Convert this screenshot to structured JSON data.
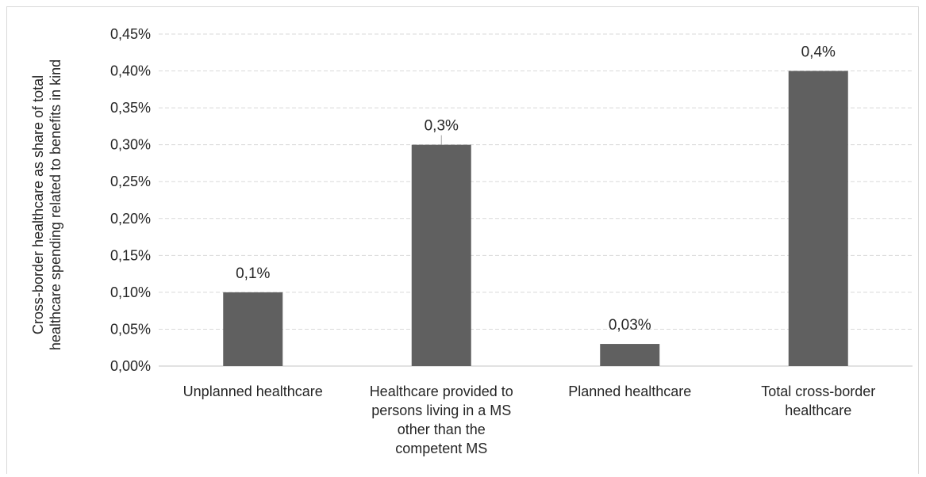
{
  "chart_data": {
    "type": "bar",
    "categories": [
      "Unplanned healthcare",
      "Healthcare provided to persons living in a MS other than the competent MS",
      "Planned healthcare",
      "Total cross-border healthcare"
    ],
    "category_lines": [
      [
        "Unplanned healthcare"
      ],
      [
        "Healthcare provided to",
        "persons living in a MS",
        "other than the",
        "competent MS"
      ],
      [
        "Planned healthcare"
      ],
      [
        "Total cross-border",
        "healthcare"
      ]
    ],
    "values": [
      0.1,
      0.3,
      0.03,
      0.4
    ],
    "data_labels": [
      "0,1%",
      "0,3%",
      "0,03%",
      "0,4%"
    ],
    "ylabel_lines": [
      "Cross-border healthcare as share of total",
      "healthcare spending related to benefits in kind"
    ],
    "ylim": [
      0,
      0.45
    ],
    "yticks": [
      0,
      0.05,
      0.1,
      0.15,
      0.2,
      0.25,
      0.3,
      0.35,
      0.4,
      0.45
    ],
    "ytick_labels": [
      "0,00%",
      "0,05%",
      "0,10%",
      "0,15%",
      "0,20%",
      "0,25%",
      "0,30%",
      "0,35%",
      "0,40%",
      "0,45%"
    ],
    "grid": true,
    "bar_color": "#606060",
    "grid_color": "#d9d9d9",
    "axis_color": "#d9d9d9"
  }
}
